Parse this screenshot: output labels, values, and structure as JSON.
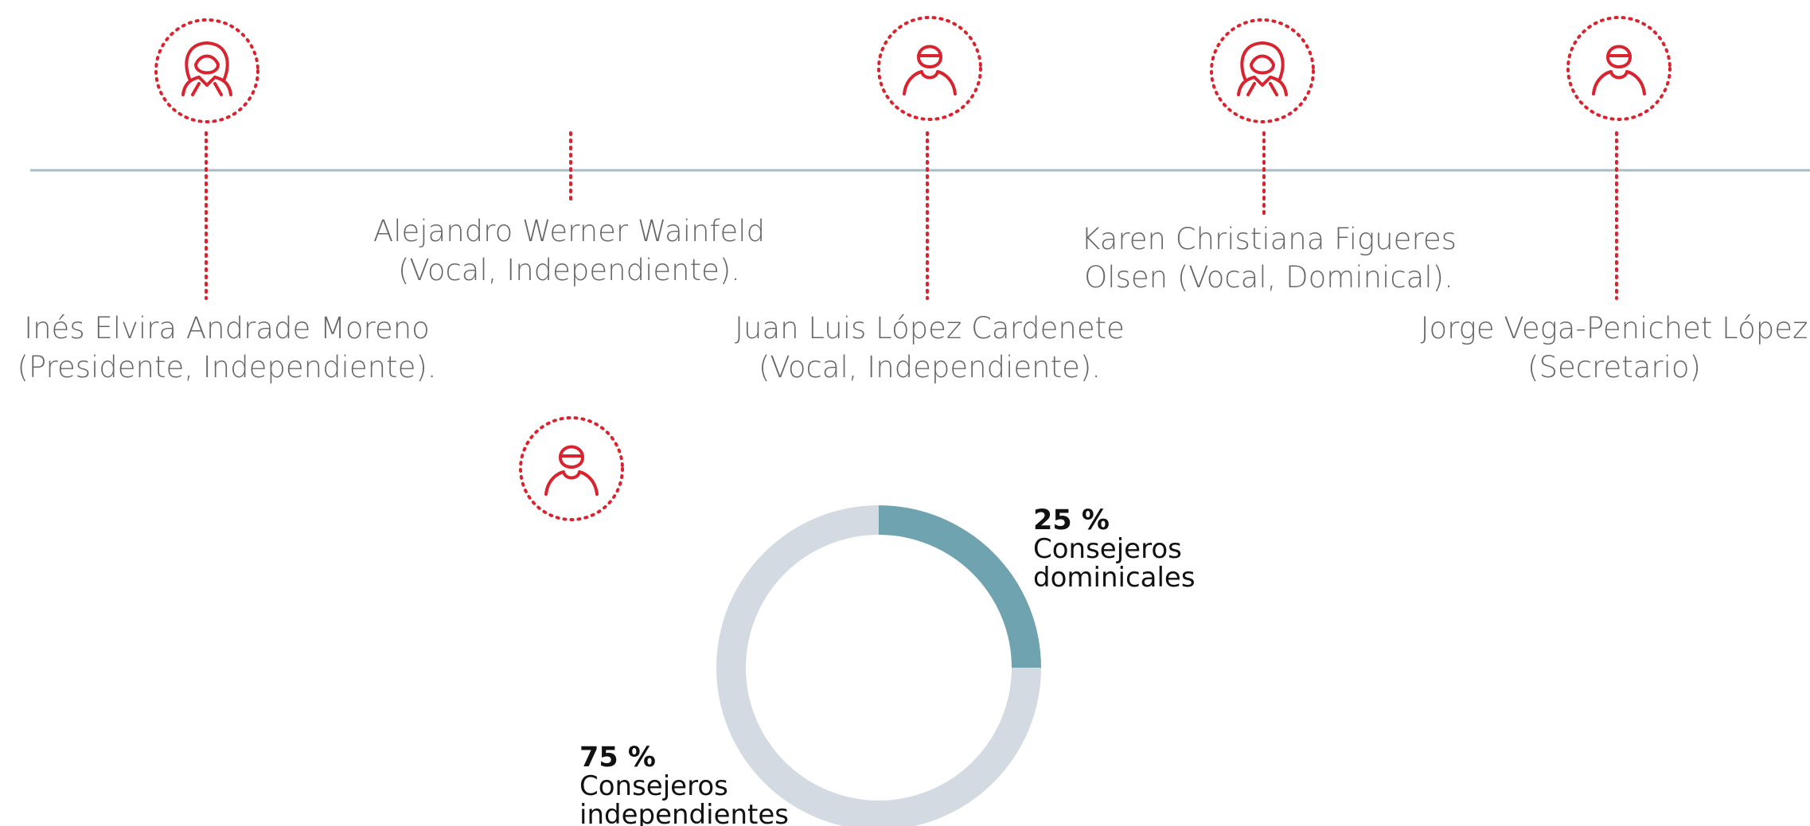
{
  "members": [
    {
      "lines": [
        "Inés Elvira Andrade Moreno",
        "(Presidente, Independiente)."
      ]
    },
    {
      "lines": [
        "Alejandro Werner Wainfeld",
        "(Vocal, Independiente)."
      ]
    },
    {
      "lines": [
        "Juan Luis López Cardenete",
        "(Vocal, Independiente)."
      ]
    },
    {
      "lines": [
        "Karen Christiana Figueres",
        "Olsen (Vocal, Dominical)."
      ]
    },
    {
      "lines": [
        "Jorge Vega-Penichet López",
        "(Secretario)"
      ]
    }
  ],
  "chart_data": {
    "type": "pie",
    "categories": [
      "Consejeros dominicales",
      "Consejeros independientes"
    ],
    "values": [
      25,
      75
    ],
    "value_labels": [
      "25 %",
      "75 %"
    ],
    "colors": [
      "#6fa3b0",
      "#d3dae2"
    ],
    "donut": true
  }
}
